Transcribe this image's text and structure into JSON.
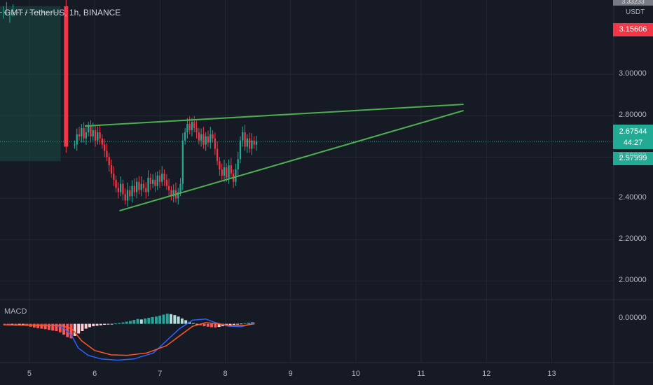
{
  "header": {
    "symbol": "GMT / TetherUS, 1h, BINANCE",
    "currency": "USDT"
  },
  "indicator": {
    "name": "MACD"
  },
  "price_badges": {
    "top": "3.33233",
    "red": "3.15606",
    "current": "2.67544",
    "countdown": "44:27",
    "green": "2.57999"
  },
  "macd_axis": {
    "zero_label": "0.00000"
  },
  "colors": {
    "background": "#161a25",
    "up": "#22ab94",
    "down": "#f23645",
    "trendline": "#4caf50",
    "macd_line": "#2962ff",
    "signal_line": "#ff5722",
    "position_box": "#1b4d45"
  },
  "chart_data": {
    "type": "candlestick",
    "title": "GMT / TetherUS, 1h, BINANCE",
    "y_ticks": [
      "3.00000",
      "2.80000",
      "2.60000",
      "2.40000",
      "2.20000",
      "2.00000"
    ],
    "y_tick_values": [
      3.0,
      2.8,
      2.6,
      2.4,
      2.2,
      2.0
    ],
    "x_ticks": [
      "5",
      "6",
      "7",
      "8",
      "9",
      "10",
      "11",
      "12",
      "13"
    ],
    "x_tick_days": [
      5,
      6,
      7,
      8,
      9,
      10,
      11,
      12,
      13
    ],
    "ylim": [
      1.91,
      3.36
    ],
    "xlim": [
      4.55,
      13.95
    ],
    "current_price": 2.67544,
    "gap": {
      "x0": 5.53,
      "open": 3.33,
      "close": 2.65
    },
    "candle_window": [
      5.68,
      8.5
    ],
    "candles_close": [
      2.66,
      2.71,
      2.7,
      2.74,
      2.69,
      2.72,
      2.75,
      2.7,
      2.73,
      2.68,
      2.72,
      2.69,
      2.66,
      2.63,
      2.6,
      2.56,
      2.52,
      2.49,
      2.45,
      2.43,
      2.47,
      2.42,
      2.39,
      2.44,
      2.41,
      2.46,
      2.43,
      2.48,
      2.44,
      2.47,
      2.45,
      2.43,
      2.5,
      2.47,
      2.49,
      2.46,
      2.51,
      2.48,
      2.52,
      2.49,
      2.46,
      2.44,
      2.41,
      2.44,
      2.4,
      2.43,
      2.47,
      2.68,
      2.72,
      2.76,
      2.73,
      2.77,
      2.74,
      2.72,
      2.68,
      2.71,
      2.66,
      2.7,
      2.67,
      2.71,
      2.69,
      2.64,
      2.58,
      2.54,
      2.51,
      2.55,
      2.5,
      2.56,
      2.52,
      2.48,
      2.54,
      2.59,
      2.68,
      2.72,
      2.65,
      2.69,
      2.64,
      2.68,
      2.66,
      2.675
    ],
    "position_box": {
      "x0": 4.55,
      "x1": 5.48,
      "top": 3.33,
      "bottom": 2.58
    },
    "trendlines": [
      {
        "x0": 5.85,
        "y0": 2.75,
        "x1": 11.65,
        "y1": 2.855
      },
      {
        "x0": 6.38,
        "y0": 2.34,
        "x1": 11.65,
        "y1": 2.825
      }
    ],
    "macd": {
      "ylim": [
        -0.16,
        0.1
      ],
      "histogram": [
        -0.004,
        -0.006,
        -0.005,
        -0.008,
        -0.007,
        -0.006,
        -0.009,
        -0.012,
        -0.015,
        -0.018,
        -0.02,
        -0.022,
        -0.025,
        -0.028,
        -0.03,
        -0.035,
        -0.045,
        -0.055,
        -0.06,
        -0.05,
        -0.04,
        -0.03,
        -0.02,
        -0.014,
        -0.01,
        -0.008,
        -0.006,
        -0.004,
        -0.003,
        -0.002,
        0.002,
        0.004,
        0.006,
        0.009,
        0.012,
        0.016,
        0.02,
        0.018,
        0.022,
        0.025,
        0.028,
        0.03,
        0.034,
        0.038,
        0.042,
        0.04,
        0.036,
        0.03,
        0.022,
        0.015,
        0.008,
        0.003,
        -0.002,
        -0.006,
        -0.01,
        -0.012,
        -0.014,
        -0.015,
        -0.013,
        -0.01,
        -0.008,
        -0.006,
        -0.004,
        -0.002,
        0.001,
        0.003,
        0.005,
        0.007
      ],
      "macd_line": [
        [
          4.6,
          -0.003
        ],
        [
          4.9,
          -0.006
        ],
        [
          5.2,
          -0.004
        ],
        [
          5.5,
          -0.01
        ],
        [
          5.65,
          -0.05
        ],
        [
          5.75,
          -0.1
        ],
        [
          5.9,
          -0.13
        ],
        [
          6.1,
          -0.145
        ],
        [
          6.35,
          -0.15
        ],
        [
          6.6,
          -0.145
        ],
        [
          6.9,
          -0.12
        ],
        [
          7.1,
          -0.07
        ],
        [
          7.3,
          -0.02
        ],
        [
          7.5,
          0.015
        ],
        [
          7.7,
          0.02
        ],
        [
          7.85,
          0.005
        ],
        [
          8.05,
          -0.01
        ],
        [
          8.25,
          -0.012
        ],
        [
          8.45,
          0.005
        ]
      ],
      "signal_line": [
        [
          4.6,
          -0.004
        ],
        [
          4.9,
          -0.005
        ],
        [
          5.2,
          -0.006
        ],
        [
          5.5,
          -0.008
        ],
        [
          5.65,
          -0.02
        ],
        [
          5.8,
          -0.07
        ],
        [
          6.0,
          -0.11
        ],
        [
          6.25,
          -0.128
        ],
        [
          6.5,
          -0.13
        ],
        [
          6.8,
          -0.12
        ],
        [
          7.1,
          -0.09
        ],
        [
          7.3,
          -0.05
        ],
        [
          7.5,
          -0.01
        ],
        [
          7.7,
          0.005
        ],
        [
          7.9,
          0.0
        ],
        [
          8.1,
          -0.008
        ],
        [
          8.3,
          -0.006
        ],
        [
          8.45,
          0.0
        ]
      ]
    }
  }
}
